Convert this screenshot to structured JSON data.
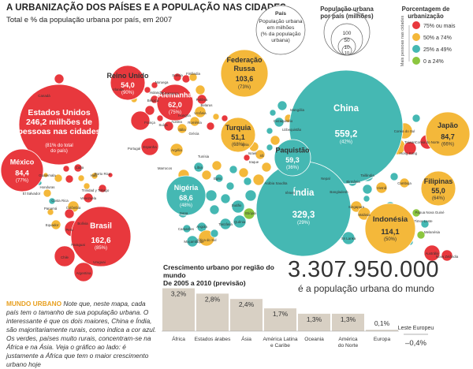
{
  "header": {
    "title": "A URBANIZAÇÃO DOS PAÍSES E A POPULAÇÃO NAS CIDADES",
    "subtitle": "Total e % da população urbana por país, em 2007"
  },
  "legend_size": {
    "box_title": "País",
    "box_lines": [
      "População urbana",
      "em milhões",
      "(% da população",
      "urbana)"
    ],
    "scale_title": "População urbana por país (milhões)",
    "scale_values": [
      "100",
      "50",
      "10",
      "10"
    ]
  },
  "legend_color": {
    "title": "Porcentagem de urbanização",
    "side_label": "Mais pessoas nas cidades",
    "items": [
      {
        "label": "75% ou mais",
        "color": "#e8383d"
      },
      {
        "label": "50% a 74%",
        "color": "#f4b83a"
      },
      {
        "label": "25% a 49%",
        "color": "#45b8b3"
      },
      {
        "label": "0 a 24%",
        "color": "#8cc63f"
      }
    ]
  },
  "colors": {
    "red": "#e8383d",
    "orange": "#f4b83a",
    "teal": "#45b8b3",
    "green": "#8cc63f"
  },
  "chart_data": [
    {
      "type": "bubble",
      "title": "A URBANIZAÇÃO DOS PAÍSES E A POPULAÇÃO NAS CIDADES",
      "subtitle": "Total e % da população urbana por país, em 2007",
      "labeled_countries": [
        {
          "name": "Estados Unidos",
          "value_display": "246,2 milhões de pessoas nas cidades",
          "pct_display": "(81% do total do país)",
          "value": 246.2,
          "pct": 81,
          "category": "red"
        },
        {
          "name": "China",
          "value_display": "559,2",
          "pct_display": "(42%)",
          "value": 559.2,
          "pct": 42,
          "category": "teal"
        },
        {
          "name": "Índia",
          "value_display": "329,3",
          "pct_display": "(29%)",
          "value": 329.3,
          "pct": 29,
          "category": "teal"
        },
        {
          "name": "Brasil",
          "value_display": "162,6",
          "pct_display": "(85%)",
          "value": 162.6,
          "pct": 85,
          "category": "red"
        },
        {
          "name": "Federação Russa",
          "value_display": "103,6",
          "pct_display": "(73%)",
          "value": 103.6,
          "pct": 73,
          "category": "orange"
        },
        {
          "name": "Indonésia",
          "value_display": "114,1",
          "pct_display": "(50%)",
          "value": 114.1,
          "pct": 50,
          "category": "orange"
        },
        {
          "name": "Japão",
          "value_display": "84,7",
          "pct_display": "(66%)",
          "value": 84.7,
          "pct": 66,
          "category": "orange"
        },
        {
          "name": "México",
          "value_display": "84,4",
          "pct_display": "(77%)",
          "value": 84.4,
          "pct": 77,
          "category": "red"
        },
        {
          "name": "Nigéria",
          "value_display": "68,6",
          "pct_display": "(48%)",
          "value": 68.6,
          "pct": 48,
          "category": "teal"
        },
        {
          "name": "Alemanha",
          "value_display": "62,0",
          "pct_display": "(75%)",
          "value": 62.0,
          "pct": 75,
          "category": "red"
        },
        {
          "name": "Paquistão",
          "value_display": "59,3",
          "pct_display": "(36%)",
          "value": 59.3,
          "pct": 36,
          "category": "teal"
        },
        {
          "name": "Filipinas",
          "value_display": "55,0",
          "pct_display": "(64%)",
          "value": 55.0,
          "pct": 64,
          "category": "orange"
        },
        {
          "name": "Reino Unido",
          "value_display": "54,0",
          "pct_display": "(90%)",
          "value": 54.0,
          "pct": 90,
          "category": "red"
        },
        {
          "name": "Turquia",
          "value_display": "51,1",
          "pct_display": "(68%)",
          "value": 51.1,
          "pct": 68,
          "category": "orange"
        }
      ],
      "small_labels": [
        "Canadá",
        "Colômbia",
        "Peru",
        "Chile",
        "Argentina",
        "Venezuela",
        "Equador",
        "Bolívia",
        "França",
        "Espanha",
        "Itália",
        "Polônia",
        "Ucrânia",
        "Irã",
        "Egito",
        "Argélia",
        "Marrocos",
        "Coreia do Sul",
        "Coreia do Norte",
        "Vietnã",
        "Tailândia",
        "Malásia",
        "Austrália",
        "Bangladesh",
        "Sri Lanka",
        "Hong Kong",
        "Taiwan",
        "Mongólia",
        "Cazaquistão",
        "Uzbequistão",
        "Iraque",
        "Arábia Saudita",
        "Sudão",
        "Etiópia",
        "Quênia",
        "Tanzânia",
        "Angola",
        "África do Sul",
        "Moçambique",
        "Gana",
        "Camarões",
        "Cuba",
        "Haiti",
        "Guatemala",
        "Honduras",
        "El Salvador",
        "Porto Rico",
        "Trinidad y Tobago",
        "Costa Rica",
        "Panamá",
        "Irlanda",
        "Noruega",
        "Suécia",
        "Finlândia",
        "Nova Zelândia",
        "Papua Nova Guiné",
        "Timor-Leste",
        "Singapura",
        "Camboja",
        "Birmânia",
        "Nepal",
        "Síria",
        "Israel",
        "Iêmen",
        "Líbia",
        "Tunísia",
        "Portugal",
        "Grécia",
        "Romênia",
        "Hungria",
        "Áustria",
        "Suíça",
        "Holanda",
        "Bélgica",
        "Dinamarca",
        "Belarus",
        "Uruguai",
        "Paraguai",
        "Melanésia",
        "Japão"
      ]
    },
    {
      "type": "bar",
      "title": "Crescimento urbano por região do mundo De 2005 a 2010 (previsão)",
      "categories": [
        "África",
        "Estados árabes",
        "Ásia",
        "América Latina e Caribe",
        "Oceania",
        "América do Norte",
        "Europa",
        "Leste Europeu"
      ],
      "values": [
        3.2,
        2.8,
        2.4,
        1.7,
        1.3,
        1.3,
        0.1,
        -0.4
      ],
      "value_labels": [
        "3,2%",
        "2,8%",
        "2,4%",
        "1,7%",
        "1,3%",
        "1,3%",
        "0,1%",
        "–0,4%"
      ],
      "ylim": [
        -0.5,
        3.5
      ]
    }
  ],
  "totals": {
    "big_number": "3.307.950.000",
    "big_number_caption": "é a população urbana do mundo"
  },
  "bars_block": {
    "title_line1": "Crescimento urbano por região do mundo",
    "title_line2": "De 2005 a 2010 (previsão)"
  },
  "caption": {
    "lead": "MUNDO URBANO",
    "text": "Note que, neste mapa, cada país tem o tamanho de sua população urbana. O interessante é que os dois maiores, China e Índia, são majoritariamente rurais, como indica a cor azul. Os verdes, países muito rurais, concentram-se na África e na Ásia. Veja o gráfico ao lado: é justamente a África que tem o maior crescimento urbano hoje"
  }
}
